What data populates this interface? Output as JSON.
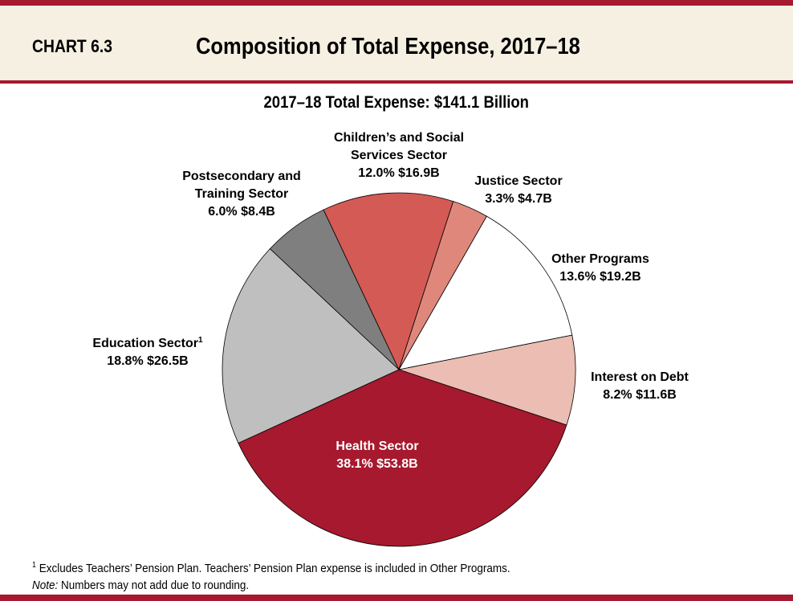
{
  "header": {
    "chart_number": "CHART 6.3",
    "title": "Composition of Total Expense, 2017–18"
  },
  "colors": {
    "accent": "#a6192e",
    "header_bg": "#f6f0e3"
  },
  "chart_data": {
    "type": "pie",
    "title": "2017–18 Total Expense: $141.1 Billion",
    "slices": [
      {
        "label": "Other Programs",
        "percent": 13.6,
        "value": "$19.2B",
        "color": "#ffffff",
        "label_lines": [
          "Other Programs",
          "13.6%  $19.2B"
        ]
      },
      {
        "label": "Interest on Debt",
        "percent": 8.2,
        "value": "$11.6B",
        "color": "#ebbdb3",
        "label_lines": [
          "Interest on Debt",
          "8.2%  $11.6B"
        ]
      },
      {
        "label": "Health Sector",
        "percent": 38.1,
        "value": "$53.8B",
        "color": "#a6192e",
        "label_lines": [
          "Health Sector",
          "38.1%  $53.8B"
        ]
      },
      {
        "label": "Education Sector",
        "percent": 18.8,
        "value": "$26.5B",
        "color": "#bfbfbf",
        "label_lines": [
          "Education Sector",
          "18.8%  $26.5B"
        ],
        "footnote_marker": "1"
      },
      {
        "label": "Postsecondary and Training Sector",
        "percent": 6.0,
        "value": "$8.4B",
        "color": "#7f7f7f",
        "label_lines": [
          "Postsecondary and",
          "Training Sector",
          "6.0%  $8.4B"
        ]
      },
      {
        "label": "Children’s and Social Services Sector",
        "percent": 12.0,
        "value": "$16.9B",
        "color": "#d45a55",
        "label_lines": [
          "Children’s and Social",
          "Services Sector",
          "12.0%  $16.9B"
        ]
      },
      {
        "label": "Justice Sector",
        "percent": 3.3,
        "value": "$4.7B",
        "color": "#e0877c",
        "label_lines": [
          "Justice Sector",
          "3.3%  $4.7B"
        ]
      }
    ]
  },
  "footnotes": {
    "marker": "1",
    "text": "Excludes Teachers’ Pension Plan. Teachers’ Pension Plan expense is included in Other Programs.",
    "note_label": "Note:",
    "note_text": "Numbers may not add due to rounding."
  }
}
